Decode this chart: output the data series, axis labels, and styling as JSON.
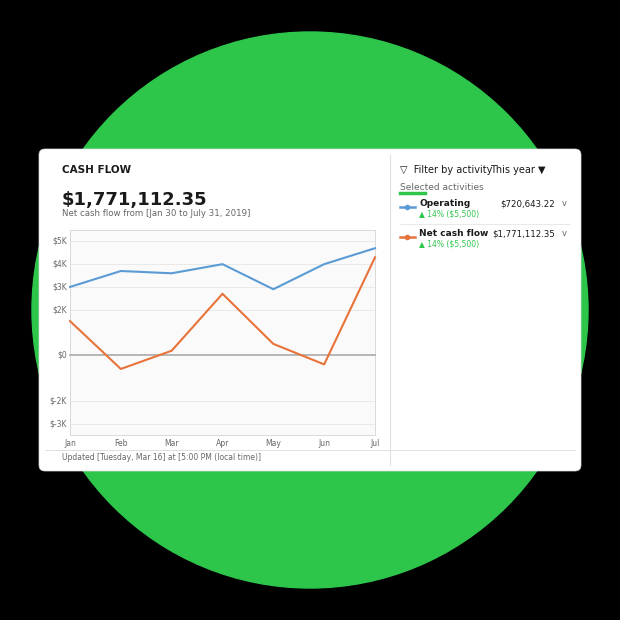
{
  "background_circle_color": "#2DC64B",
  "card_bg_color": "#FFFFFF",
  "title": "CASH FLOW",
  "this_year_label": "This year ▼",
  "filter_label": "▽  Filter by activity",
  "selected_activities_label": "Selected activities",
  "main_value": "$1,771,112.35",
  "subtitle": "Net cash flow from [Jan 30 to July 31, 2019]",
  "update_text": "Updated [Tuesday, Mar 16] at [5:00 PM (local time)]",
  "months": [
    "Jan",
    "Feb",
    "Mar",
    "Apr",
    "May",
    "Jun",
    "Jul"
  ],
  "operating_values": [
    3000,
    3700,
    3600,
    4000,
    2900,
    4000,
    4700
  ],
  "netcash_values": [
    1500,
    -600,
    200,
    2700,
    500,
    -400,
    4300
  ],
  "operating_color": "#5B9BD5",
  "netcash_color": "#E8733A",
  "ytick_labels": [
    "$5K",
    "$4K",
    "$3K",
    "$2K",
    "$0",
    "$-2K",
    "$-3K"
  ],
  "ytick_values": [
    5000,
    4000,
    3000,
    2000,
    0,
    -2000,
    -3000
  ],
  "ylim": [
    -3500,
    5500
  ],
  "legend_operating": "Operating",
  "legend_operating_value": "$720,643.22",
  "legend_operating_pct": "▲ 14% ($5,500)",
  "legend_netcash": "Net cash flow",
  "legend_netcash_value": "$1,771,112.35",
  "legend_netcash_pct": "▲ 14% ($5,500)",
  "selected_bar_color": "#2DC64B",
  "divider_color": "#E0E0E0",
  "text_dark": "#1A1A1A",
  "text_gray": "#666666",
  "text_light": "#999999"
}
